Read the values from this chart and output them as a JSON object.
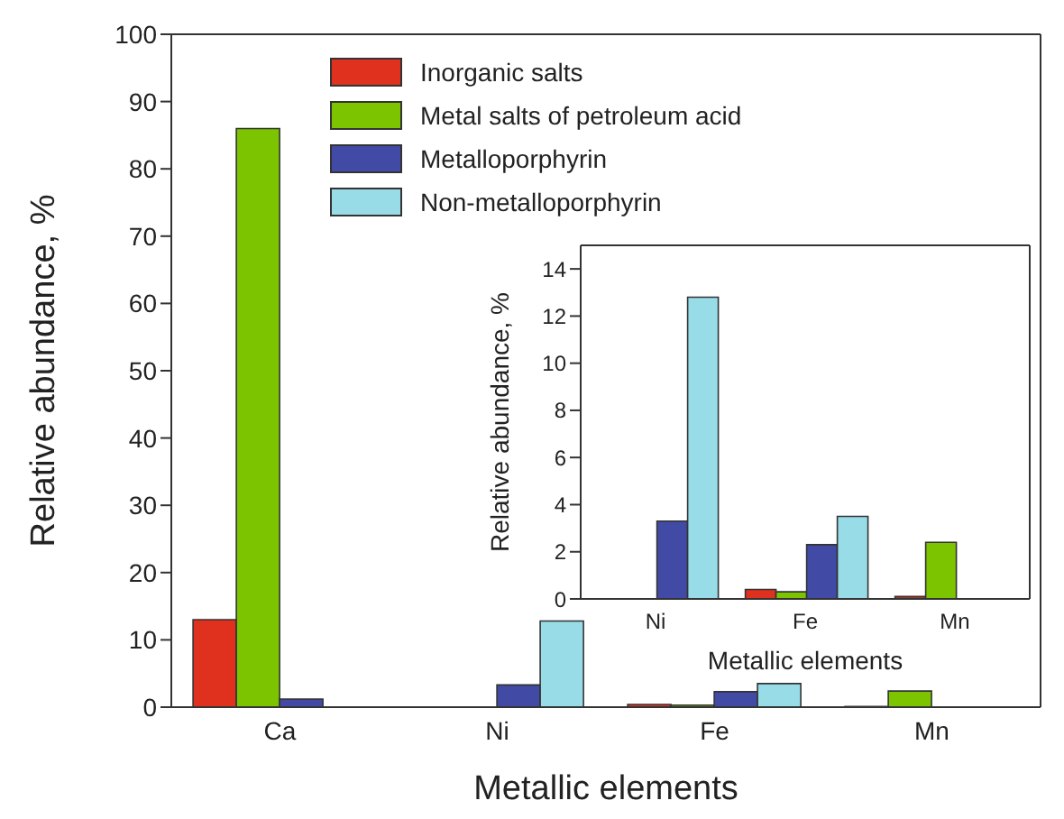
{
  "chart_data": [
    {
      "type": "bar",
      "xlabel": "Metallic elements",
      "ylabel": "Relative abundance, %",
      "categories": [
        "Ca",
        "Ni",
        "Fe",
        "Mn"
      ],
      "ylim": [
        0,
        100
      ],
      "yticks": [
        0,
        10,
        20,
        30,
        40,
        50,
        60,
        70,
        80,
        90,
        100
      ],
      "grid": false,
      "legend": "top",
      "series": [
        {
          "name": "Inorganic salts",
          "color": "#e0301e",
          "values": [
            13,
            0,
            0.4,
            0.1
          ]
        },
        {
          "name": "Metal salts of petroleum acid",
          "color": "#7cc400",
          "values": [
            86,
            0,
            0.3,
            2.4
          ]
        },
        {
          "name": "Metalloporphyrin",
          "color": "#414ba6",
          "values": [
            1.2,
            3.3,
            2.3,
            0
          ]
        },
        {
          "name": "Non-metalloporphyrin",
          "color": "#98dce8",
          "values": [
            0,
            12.8,
            3.5,
            0
          ]
        }
      ]
    },
    {
      "type": "bar",
      "xlabel": "Metallic elements",
      "ylabel": "Relative abundance, %",
      "categories": [
        "Ni",
        "Fe",
        "Mn"
      ],
      "ylim": [
        0,
        15
      ],
      "yticks": [
        0,
        2,
        4,
        6,
        8,
        10,
        12,
        14
      ],
      "grid": false,
      "legend": false,
      "series": [
        {
          "color": "#e0301e",
          "values": [
            0,
            0.4,
            0.1
          ]
        },
        {
          "color": "#7cc400",
          "values": [
            0,
            0.3,
            2.4
          ]
        },
        {
          "color": "#414ba6",
          "values": [
            3.3,
            2.3,
            0
          ]
        },
        {
          "color": "#98dce8",
          "values": [
            12.8,
            3.5,
            0
          ]
        }
      ]
    }
  ]
}
